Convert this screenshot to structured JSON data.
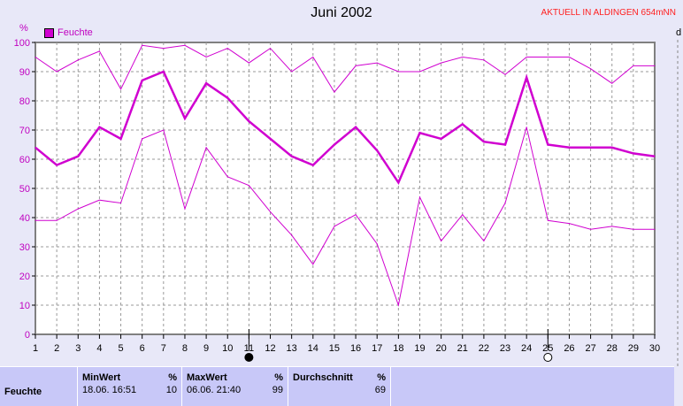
{
  "header": {
    "title": "Juni 2002",
    "station": "AKTUELL IN ALDINGEN 654mNN",
    "unit": "%",
    "right_label": "d"
  },
  "chart_data": {
    "type": "line",
    "title": "Juni 2002",
    "ylabel": "%",
    "ylim": [
      0,
      100
    ],
    "xlim": [
      1,
      30
    ],
    "grid": true,
    "legend": "top-left",
    "x": [
      1,
      2,
      3,
      4,
      5,
      6,
      7,
      8,
      9,
      10,
      11,
      12,
      13,
      14,
      15,
      16,
      17,
      18,
      19,
      20,
      21,
      22,
      23,
      24,
      25,
      26,
      27,
      28,
      29,
      30
    ],
    "yticks": [
      0,
      10,
      20,
      30,
      40,
      50,
      60,
      70,
      80,
      90,
      100
    ],
    "series": [
      {
        "name": "Feuchte",
        "role": "mean",
        "values": [
          64,
          58,
          61,
          71,
          67,
          87,
          90,
          74,
          86,
          81,
          73,
          67,
          61,
          58,
          65,
          71,
          63,
          52,
          69,
          67,
          72,
          66,
          65,
          88,
          65,
          64,
          64,
          64,
          62,
          61
        ]
      },
      {
        "role": "max",
        "values": [
          95,
          90,
          94,
          97,
          84,
          99,
          98,
          99,
          95,
          98,
          93,
          98,
          90,
          95,
          83,
          92,
          93,
          90,
          90,
          93,
          95,
          94,
          89,
          95,
          95,
          95,
          91,
          86,
          92,
          92
        ]
      },
      {
        "role": "min",
        "values": [
          39,
          39,
          43,
          46,
          45,
          67,
          70,
          43,
          64,
          54,
          51,
          42,
          34,
          24,
          37,
          41,
          31,
          10,
          47,
          32,
          41,
          32,
          45,
          71,
          39,
          38,
          36,
          37,
          36,
          36
        ]
      }
    ],
    "color": "#d000d0",
    "moon_phases": [
      {
        "day": 11,
        "phase": "new-moon"
      },
      {
        "day": 25,
        "phase": "full-moon"
      }
    ]
  },
  "table": {
    "row_label": "Feuchte",
    "min": {
      "header": "MinWert",
      "unit": "%",
      "time": "18.06.  16:51",
      "value": "10"
    },
    "max": {
      "header": "MaxWert",
      "unit": "%",
      "time": "06.06.  21:40",
      "value": "99"
    },
    "avg": {
      "header": "Durchschnitt",
      "unit": "%",
      "value": "69"
    }
  }
}
